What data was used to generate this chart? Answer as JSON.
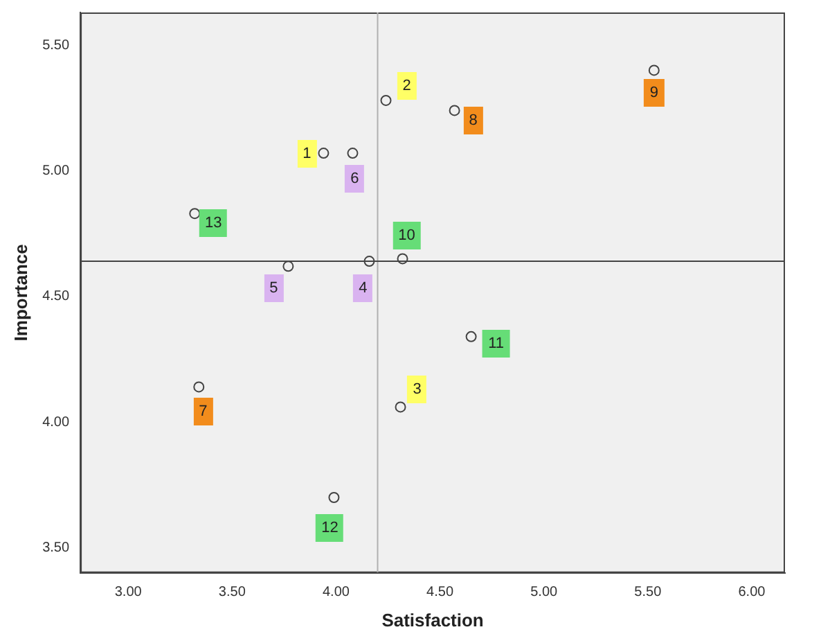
{
  "chart_data": {
    "type": "scatter",
    "xlabel": "Satisfaction",
    "ylabel": "Importance",
    "marker": "circle",
    "series": [
      {
        "color": "#444444",
        "x": [
          3.94,
          4.24,
          4.31,
          4.16,
          3.77,
          4.08,
          3.34,
          4.57,
          5.53,
          4.32,
          4.65,
          3.99,
          3.32
        ],
        "values": [
          5.07,
          5.28,
          4.06,
          4.64,
          4.62,
          5.07,
          4.14,
          5.24,
          5.4,
          4.65,
          4.34,
          3.7,
          4.83
        ]
      }
    ],
    "annotations": [
      {
        "text": "1",
        "x": 3.86,
        "y": 5.07
      },
      {
        "text": "2",
        "x": 4.34,
        "y": 5.34
      },
      {
        "text": "3",
        "x": 4.39,
        "y": 4.13
      },
      {
        "text": "4",
        "x": 4.13,
        "y": 4.53
      },
      {
        "text": "5",
        "x": 3.7,
        "y": 4.53
      },
      {
        "text": "6",
        "x": 4.09,
        "y": 4.97
      },
      {
        "text": "7",
        "x": 3.36,
        "y": 4.04
      },
      {
        "text": "8",
        "x": 4.66,
        "y": 5.2
      },
      {
        "text": "9",
        "x": 5.53,
        "y": 5.31
      },
      {
        "text": "10",
        "x": 4.34,
        "y": 4.74
      },
      {
        "text": "11",
        "x": 4.77,
        "y": 4.31
      },
      {
        "text": "12",
        "x": 3.97,
        "y": 3.58
      },
      {
        "text": "13",
        "x": 3.41,
        "y": 4.79
      }
    ],
    "xlim": [
      2.77,
      6.16
    ],
    "ylim": [
      3.4,
      5.63
    ],
    "xticks": [
      {
        "value": 3,
        "label": "3.00"
      },
      {
        "value": 3.5,
        "label": "3.50"
      },
      {
        "value": 4,
        "label": "4.00"
      },
      {
        "value": 4.5,
        "label": "4.50"
      },
      {
        "value": 5,
        "label": "5.00"
      },
      {
        "value": 5.5,
        "label": "5.50"
      },
      {
        "value": 6,
        "label": "6.00"
      }
    ],
    "yticks": [
      {
        "value": 3.5,
        "label": "3.50"
      },
      {
        "value": 4,
        "label": "4.00"
      },
      {
        "value": 4.5,
        "label": "4.50"
      },
      {
        "value": 5,
        "label": "5.00"
      },
      {
        "value": 5.5,
        "label": "5.50"
      }
    ],
    "ref_lines": [
      {
        "axis": "x",
        "value": 4.2,
        "color": "#b0b0b0"
      },
      {
        "axis": "y",
        "value": 4.64,
        "color": "#444444"
      }
    ]
  }
}
